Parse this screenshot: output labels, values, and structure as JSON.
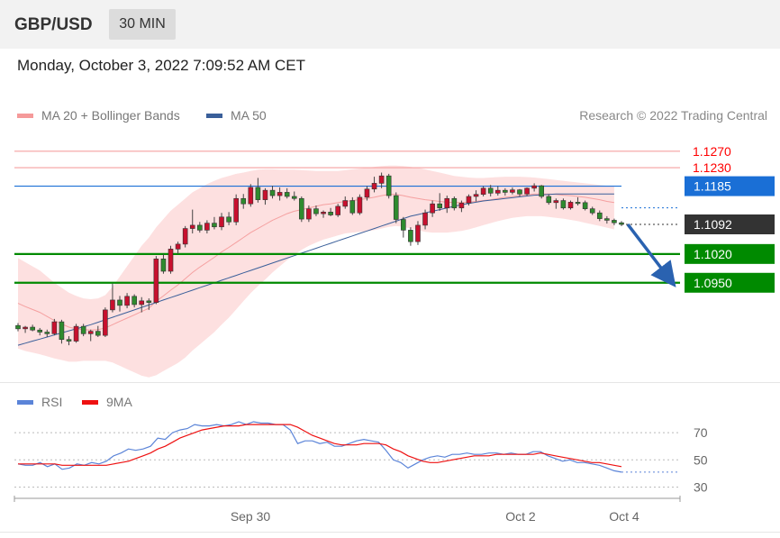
{
  "header": {
    "symbol": "GBP/USD",
    "timeframe": "30 MIN",
    "datetime": "Monday, October 3, 2022 7:09:52 AM CET"
  },
  "legend": {
    "bollinger": {
      "label": "MA 20 + Bollinger Bands",
      "color": "#f59a9a"
    },
    "ma50": {
      "label": "MA 50",
      "color": "#3a5f9a"
    }
  },
  "copyright": "Research © 2022 Trading Central",
  "rsi_legend": {
    "rsi": {
      "label": "RSI",
      "color": "#5b84d8"
    },
    "ma9": {
      "label": "9MA",
      "color": "#ee1111"
    }
  },
  "chart_data": [
    {
      "type": "candlestick",
      "ylim": [
        1.075,
        1.132
      ],
      "x_tick_labels": [
        "Sep 30",
        "Oct 2",
        "Oct 4"
      ],
      "last_price": 1.1092,
      "levels": [
        {
          "value": 1.127,
          "label": "1.1270",
          "kind": "resistance",
          "color": "#ff0000"
        },
        {
          "value": 1.123,
          "label": "1.1230",
          "kind": "resistance",
          "color": "#ff0000"
        },
        {
          "value": 1.1185,
          "label": "1.1185",
          "kind": "pivot",
          "color": "#1a6fd6"
        },
        {
          "value": 1.1092,
          "label": "1.1092",
          "kind": "last",
          "color": "#333333"
        },
        {
          "value": 1.102,
          "label": "1.1020",
          "kind": "support",
          "color": "#008a00"
        },
        {
          "value": 1.095,
          "label": "1.0950",
          "kind": "support",
          "color": "#008a00"
        }
      ],
      "forecast_arrow": {
        "from": 1.1092,
        "to": 1.095,
        "color": "#2a62b0"
      },
      "candles": [
        [
          1.0846,
          1.0852,
          1.0832,
          1.0838
        ],
        [
          1.0838,
          1.0845,
          1.0828,
          1.0842
        ],
        [
          1.0842,
          1.0848,
          1.0832,
          1.0835
        ],
        [
          1.0835,
          1.084,
          1.0822,
          1.083
        ],
        [
          1.083,
          1.0836,
          1.0818,
          1.0826
        ],
        [
          1.0826,
          1.0862,
          1.0822,
          1.0855
        ],
        [
          1.0855,
          1.086,
          1.0802,
          1.0812
        ],
        [
          1.0812,
          1.082,
          1.0798,
          1.0808
        ],
        [
          1.0808,
          1.085,
          1.0804,
          1.0844
        ],
        [
          1.0844,
          1.085,
          1.082,
          1.0826
        ],
        [
          1.0826,
          1.0836,
          1.0808,
          1.0832
        ],
        [
          1.0832,
          1.0845,
          1.0818,
          1.0822
        ],
        [
          1.0822,
          1.089,
          1.0818,
          1.0884
        ],
        [
          1.0884,
          1.0948,
          1.0878,
          1.0908
        ],
        [
          1.0908,
          1.0918,
          1.088,
          1.0895
        ],
        [
          1.0895,
          1.0925,
          1.0888,
          1.0917
        ],
        [
          1.0917,
          1.0922,
          1.089,
          1.0897
        ],
        [
          1.0897,
          1.0915,
          1.0878,
          1.0906
        ],
        [
          1.0906,
          1.0912,
          1.0884,
          1.0902
        ],
        [
          1.0902,
          1.1015,
          1.0898,
          1.1008
        ],
        [
          1.1008,
          1.102,
          1.0972,
          1.0978
        ],
        [
          1.0978,
          1.104,
          1.0972,
          1.1032
        ],
        [
          1.1032,
          1.105,
          1.102,
          1.1044
        ],
        [
          1.1044,
          1.1088,
          1.1036,
          1.1082
        ],
        [
          1.1082,
          1.1128,
          1.107,
          1.109
        ],
        [
          1.109,
          1.1098,
          1.1072,
          1.1078
        ],
        [
          1.1078,
          1.1102,
          1.107,
          1.1095
        ],
        [
          1.1095,
          1.111,
          1.108,
          1.1086
        ],
        [
          1.1086,
          1.112,
          1.1078,
          1.111
        ],
        [
          1.111,
          1.1122,
          1.109,
          1.1098
        ],
        [
          1.1098,
          1.1165,
          1.109,
          1.1155
        ],
        [
          1.1155,
          1.1166,
          1.113,
          1.1142
        ],
        [
          1.1142,
          1.119,
          1.1135,
          1.1182
        ],
        [
          1.1182,
          1.1205,
          1.1145,
          1.1152
        ],
        [
          1.1152,
          1.118,
          1.114,
          1.1175
        ],
        [
          1.1175,
          1.1186,
          1.1155,
          1.1162
        ],
        [
          1.1162,
          1.1182,
          1.115,
          1.117
        ],
        [
          1.117,
          1.118,
          1.1155,
          1.116
        ],
        [
          1.116,
          1.1172,
          1.115,
          1.1155
        ],
        [
          1.1155,
          1.116,
          1.1098,
          1.1105
        ],
        [
          1.1105,
          1.1138,
          1.1098,
          1.113
        ],
        [
          1.113,
          1.1138,
          1.1112,
          1.1118
        ],
        [
          1.1118,
          1.1126,
          1.1108,
          1.1122
        ],
        [
          1.1122,
          1.1132,
          1.1112,
          1.1115
        ],
        [
          1.1115,
          1.1142,
          1.111,
          1.1136
        ],
        [
          1.1136,
          1.116,
          1.113,
          1.115
        ],
        [
          1.115,
          1.1158,
          1.1115,
          1.112
        ],
        [
          1.112,
          1.1165,
          1.1115,
          1.1158
        ],
        [
          1.1158,
          1.1185,
          1.115,
          1.1178
        ],
        [
          1.1178,
          1.1208,
          1.117,
          1.1192
        ],
        [
          1.1192,
          1.1218,
          1.118,
          1.121
        ],
        [
          1.121,
          1.1215,
          1.1155,
          1.1162
        ],
        [
          1.1162,
          1.117,
          1.1095,
          1.1104
        ],
        [
          1.1104,
          1.111,
          1.106,
          1.1078
        ],
        [
          1.1078,
          1.1085,
          1.104,
          1.105
        ],
        [
          1.105,
          1.11,
          1.1042,
          1.109
        ],
        [
          1.109,
          1.1128,
          1.108,
          1.112
        ],
        [
          1.112,
          1.115,
          1.111,
          1.1142
        ],
        [
          1.1142,
          1.1168,
          1.1125,
          1.1132
        ],
        [
          1.1132,
          1.1162,
          1.112,
          1.1155
        ],
        [
          1.1155,
          1.116,
          1.1126,
          1.1132
        ],
        [
          1.1132,
          1.115,
          1.1122,
          1.1144
        ],
        [
          1.1144,
          1.1165,
          1.1138,
          1.116
        ],
        [
          1.116,
          1.1175,
          1.1148,
          1.1165
        ],
        [
          1.1165,
          1.1185,
          1.116,
          1.118
        ],
        [
          1.118,
          1.1188,
          1.116,
          1.1168
        ],
        [
          1.1168,
          1.1185,
          1.1162,
          1.1175
        ],
        [
          1.1175,
          1.118,
          1.1162,
          1.117
        ],
        [
          1.117,
          1.1182,
          1.1165,
          1.1176
        ],
        [
          1.1176,
          1.1178,
          1.116,
          1.1166
        ],
        [
          1.1166,
          1.1182,
          1.1162,
          1.118
        ],
        [
          1.118,
          1.1192,
          1.1172,
          1.1186
        ],
        [
          1.1186,
          1.1188,
          1.1155,
          1.116
        ],
        [
          1.116,
          1.1165,
          1.114,
          1.1145
        ],
        [
          1.1145,
          1.1155,
          1.113,
          1.115
        ],
        [
          1.115,
          1.1155,
          1.1128,
          1.1132
        ],
        [
          1.1132,
          1.115,
          1.1128,
          1.1146
        ],
        [
          1.1146,
          1.1158,
          1.1138,
          1.1145
        ],
        [
          1.1145,
          1.115,
          1.1126,
          1.113
        ],
        [
          1.113,
          1.1135,
          1.1115,
          1.112
        ],
        [
          1.112,
          1.1126,
          1.11,
          1.1106
        ],
        [
          1.1106,
          1.1112,
          1.1094,
          1.1102
        ],
        [
          1.1102,
          1.1106,
          1.109,
          1.1096
        ],
        [
          1.1096,
          1.11,
          1.1088,
          1.1092
        ]
      ],
      "ma20": [
        1.09,
        1.0892,
        1.0885,
        1.0878,
        1.0868,
        1.0858,
        1.085,
        1.0842,
        1.0838,
        1.0836,
        1.0835,
        1.0836,
        1.084,
        1.0848,
        1.0856,
        1.0864,
        1.0872,
        1.088,
        1.0888,
        1.0905,
        1.0918,
        1.0932,
        1.0945,
        1.096,
        1.0975,
        1.0988,
        1.1,
        1.1012,
        1.1025,
        1.1036,
        1.1048,
        1.106,
        1.1072,
        1.1082,
        1.1092,
        1.1102,
        1.111,
        1.1118,
        1.1124,
        1.1128,
        1.1132,
        1.1136,
        1.114,
        1.1142,
        1.1145,
        1.1148,
        1.115,
        1.1152,
        1.1155,
        1.1158,
        1.1162,
        1.1165,
        1.1165,
        1.1162,
        1.1158,
        1.1155,
        1.1152,
        1.115,
        1.1148,
        1.1146,
        1.1145,
        1.1145,
        1.1146,
        1.1148,
        1.115,
        1.1152,
        1.1155,
        1.1158,
        1.116,
        1.1162,
        1.1164,
        1.1166,
        1.1166,
        1.1166,
        1.1165,
        1.1163,
        1.1162,
        1.116,
        1.1158,
        1.1155,
        1.1152,
        1.1148,
        1.1145
      ],
      "bb_upper": [
        1.101,
        1.1,
        1.099,
        1.098,
        1.0965,
        1.095,
        1.0938,
        1.0926,
        1.0918,
        1.0912,
        1.091,
        1.0912,
        1.092,
        1.094,
        1.0965,
        1.099,
        1.1015,
        1.104,
        1.106,
        1.1085,
        1.1105,
        1.1125,
        1.114,
        1.1155,
        1.117,
        1.118,
        1.119,
        1.1198,
        1.1205,
        1.121,
        1.1215,
        1.1218,
        1.1222,
        1.1225,
        1.1226,
        1.1226,
        1.1225,
        1.1225,
        1.1225,
        1.1224,
        1.1223,
        1.1222,
        1.1222,
        1.1222,
        1.1222,
        1.1224,
        1.1226,
        1.1228,
        1.123,
        1.1232,
        1.1234,
        1.1235,
        1.1235,
        1.1234,
        1.1232,
        1.123,
        1.1226,
        1.1222,
        1.1218,
        1.1214,
        1.121,
        1.1208,
        1.1206,
        1.1205,
        1.1205,
        1.1206,
        1.1207,
        1.1208,
        1.1208,
        1.1208,
        1.1207,
        1.1206,
        1.1204,
        1.1202,
        1.12,
        1.1198,
        1.1196,
        1.1194,
        1.1192,
        1.119,
        1.1188,
        1.1186,
        1.1184
      ],
      "bb_lower": [
        1.079,
        1.0784,
        1.078,
        1.0776,
        1.0771,
        1.0766,
        1.0762,
        1.0758,
        1.0758,
        1.076,
        1.076,
        1.076,
        1.076,
        1.0756,
        1.0748,
        1.074,
        1.0732,
        1.0724,
        1.072,
        1.0725,
        1.0735,
        1.0745,
        1.0755,
        1.0768,
        1.0785,
        1.08,
        1.0815,
        1.083,
        1.0848,
        1.0865,
        1.0885,
        1.0905,
        1.0925,
        1.0942,
        1.0958,
        1.0975,
        1.099,
        1.1005,
        1.1018,
        1.103,
        1.104,
        1.1048,
        1.1055,
        1.106,
        1.1065,
        1.107,
        1.1072,
        1.1074,
        1.1075,
        1.1078,
        1.1082,
        1.1086,
        1.1088,
        1.1086,
        1.1082,
        1.1078,
        1.1074,
        1.1072,
        1.1072,
        1.1072,
        1.1074,
        1.1076,
        1.108,
        1.1085,
        1.109,
        1.1095,
        1.11,
        1.1104,
        1.1108,
        1.111,
        1.1112,
        1.1112,
        1.1112,
        1.111,
        1.1108,
        1.1106,
        1.1103,
        1.11,
        1.1096,
        1.1092,
        1.1088,
        1.1084,
        1.108
      ],
      "ma50": [
        1.0798,
        1.0803,
        1.0808,
        1.0813,
        1.0818,
        1.0823,
        1.0828,
        1.0833,
        1.0838,
        1.0843,
        1.0848,
        1.0854,
        1.086,
        1.0866,
        1.0872,
        1.0878,
        1.0884,
        1.089,
        1.0896,
        1.0902,
        1.0908,
        1.0914,
        1.092,
        1.0926,
        1.0932,
        1.0938,
        1.0944,
        1.095,
        1.0956,
        1.0962,
        1.0968,
        1.0974,
        1.098,
        1.0986,
        1.0992,
        1.0998,
        1.1004,
        1.101,
        1.1016,
        1.1022,
        1.1028,
        1.1034,
        1.104,
        1.1046,
        1.1052,
        1.1058,
        1.1064,
        1.107,
        1.1076,
        1.1082,
        1.1088,
        1.1094,
        1.11,
        1.1106,
        1.1112,
        1.1116,
        1.112,
        1.1124,
        1.1128,
        1.1132,
        1.1136,
        1.114,
        1.1143,
        1.1146,
        1.1149,
        1.1151,
        1.1153,
        1.1155,
        1.1157,
        1.1159,
        1.1161,
        1.1163,
        1.1164,
        1.1165,
        1.1166,
        1.1166,
        1.1166,
        1.1166,
        1.1166,
        1.1166,
        1.1166,
        1.1166,
        1.1166
      ]
    },
    {
      "type": "line",
      "series": [
        {
          "name": "RSI",
          "color": "#5b84d8",
          "values": [
            47,
            46,
            46,
            48,
            45,
            47,
            43,
            44,
            47,
            46,
            48,
            47,
            49,
            53,
            55,
            58,
            57,
            58,
            60,
            66,
            65,
            70,
            72,
            73,
            76,
            75,
            75,
            76,
            75,
            76,
            78,
            76,
            78,
            77,
            77,
            76,
            76,
            72,
            62,
            64,
            64,
            62,
            63,
            60,
            60,
            62,
            64,
            65,
            64,
            63,
            57,
            50,
            48,
            44,
            47,
            50,
            52,
            53,
            52,
            54,
            54,
            55,
            54,
            54,
            55,
            55,
            54,
            55,
            54,
            54,
            56,
            56,
            53,
            51,
            49,
            50,
            48,
            48,
            47,
            46,
            44,
            42,
            41
          ]
        },
        {
          "name": "9MA",
          "color": "#ee1111",
          "values": [
            47,
            47,
            47,
            47,
            47,
            47,
            46,
            46,
            46,
            46,
            46,
            46,
            46,
            47,
            48,
            49,
            51,
            53,
            55,
            58,
            60,
            63,
            66,
            68,
            70,
            72,
            73,
            74,
            75,
            75,
            75,
            76,
            76,
            76,
            76,
            76,
            76,
            76,
            74,
            71,
            68,
            66,
            64,
            62,
            61,
            61,
            61,
            62,
            62,
            62,
            61,
            58,
            56,
            53,
            51,
            49,
            48,
            48,
            49,
            50,
            51,
            52,
            53,
            53,
            53,
            54,
            54,
            54,
            54,
            54,
            54,
            55,
            54,
            53,
            52,
            51,
            50,
            49,
            48,
            48,
            47,
            46,
            45
          ]
        }
      ],
      "ylim": [
        25,
        82
      ],
      "y_tick_labels": [
        "70",
        "50",
        "30"
      ],
      "y_ticks": [
        70,
        50,
        30
      ],
      "x_tick_labels": [
        "Sep 30",
        "Oct 2",
        "Oct 4"
      ]
    }
  ]
}
